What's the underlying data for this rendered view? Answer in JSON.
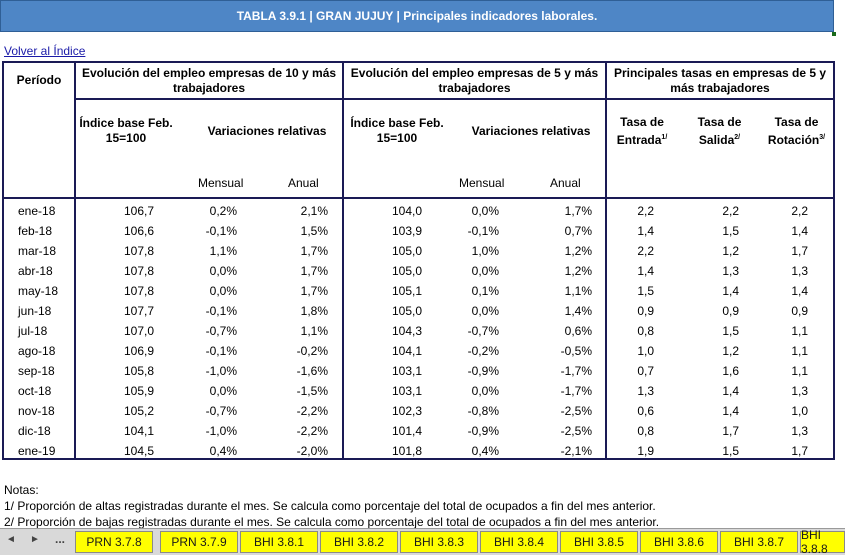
{
  "title": "TABLA 3.9.1 | GRAN JUJUY | Principales indicadores laborales.",
  "back_link": "Volver al Índice",
  "headers": {
    "period": "Período",
    "group10": "Evolución del empleo empresas de 10 y más trabajadores",
    "group5": "Evolución del empleo empresas de 5 y más trabajadores",
    "rates": "Principales tasas en empresas de 5 y más trabajadores",
    "index": "Índice base Feb. 15=100",
    "variations": "Variaciones relativas",
    "monthly": "Mensual",
    "annual": "Anual",
    "rate_in": "Tasa de Entrada",
    "rate_in_note": "1/",
    "rate_out": "Tasa de Salida",
    "rate_out_note": "2/",
    "rate_rot": "Tasa de Rotación",
    "rate_rot_note": "3/"
  },
  "rows": [
    [
      "ene-18",
      "106,7",
      "0,2%",
      "2,1%",
      "104,0",
      "0,0%",
      "1,7%",
      "2,2",
      "2,2",
      "2,2"
    ],
    [
      "feb-18",
      "106,6",
      "-0,1%",
      "1,5%",
      "103,9",
      "-0,1%",
      "0,7%",
      "1,4",
      "1,5",
      "1,4"
    ],
    [
      "mar-18",
      "107,8",
      "1,1%",
      "1,7%",
      "105,0",
      "1,0%",
      "1,2%",
      "2,2",
      "1,2",
      "1,7"
    ],
    [
      "abr-18",
      "107,8",
      "0,0%",
      "1,7%",
      "105,0",
      "0,0%",
      "1,2%",
      "1,4",
      "1,3",
      "1,3"
    ],
    [
      "may-18",
      "107,8",
      "0,0%",
      "1,7%",
      "105,1",
      "0,1%",
      "1,1%",
      "1,5",
      "1,4",
      "1,4"
    ],
    [
      "jun-18",
      "107,7",
      "-0,1%",
      "1,8%",
      "105,0",
      "0,0%",
      "1,4%",
      "0,9",
      "0,9",
      "0,9"
    ],
    [
      "jul-18",
      "107,0",
      "-0,7%",
      "1,1%",
      "104,3",
      "-0,7%",
      "0,6%",
      "0,8",
      "1,5",
      "1,1"
    ],
    [
      "ago-18",
      "106,9",
      "-0,1%",
      "-0,2%",
      "104,1",
      "-0,2%",
      "-0,5%",
      "1,0",
      "1,2",
      "1,1"
    ],
    [
      "sep-18",
      "105,8",
      "-1,0%",
      "-1,6%",
      "103,1",
      "-0,9%",
      "-1,7%",
      "0,7",
      "1,6",
      "1,1"
    ],
    [
      "oct-18",
      "105,9",
      "0,0%",
      "-1,5%",
      "103,1",
      "0,0%",
      "-1,7%",
      "1,3",
      "1,4",
      "1,3"
    ],
    [
      "nov-18",
      "105,2",
      "-0,7%",
      "-2,2%",
      "102,3",
      "-0,8%",
      "-2,5%",
      "0,6",
      "1,4",
      "1,0"
    ],
    [
      "dic-18",
      "104,1",
      "-1,0%",
      "-2,2%",
      "101,4",
      "-0,9%",
      "-2,5%",
      "0,8",
      "1,7",
      "1,3"
    ],
    [
      "ene-19",
      "104,5",
      "0,4%",
      "-2,0%",
      "101,8",
      "0,4%",
      "-2,1%",
      "1,9",
      "1,5",
      "1,7"
    ]
  ],
  "notes": {
    "heading": "Notas:",
    "n1": "1/ Proporción de altas registradas durante el mes. Se calcula como porcentaje del total de ocupados a fin del mes anterior.",
    "n2": "2/ Proporción de bajas registradas durante el mes. Se calcula como porcentaje del total de ocupados a fin del mes anterior."
  },
  "sheet_nav": {
    "prev": "◄",
    "next": "►",
    "more": "..."
  },
  "tabs": [
    "PRN 3.7.8",
    "PRN 3.7.9",
    "BHI 3.8.1",
    "BHI 3.8.2",
    "BHI 3.8.3",
    "BHI 3.8.4",
    "BHI 3.8.5",
    "BHI 3.8.6",
    "BHI 3.8.7",
    "BHI 3.8.8"
  ]
}
